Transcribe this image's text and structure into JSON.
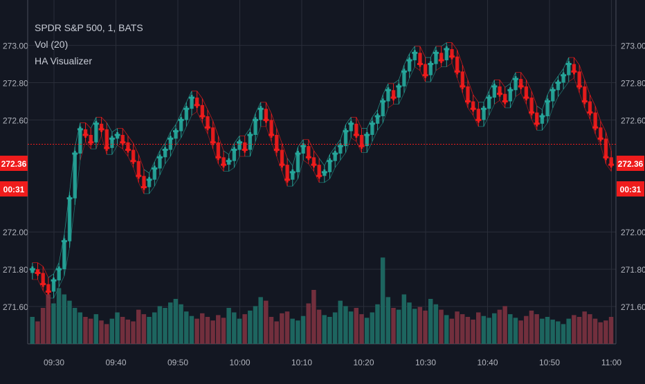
{
  "legend": {
    "symbol": "SPDR S&P 500, 1, BATS",
    "volume": "Vol (20)",
    "indicator": "HA Visualizer"
  },
  "price_labels": {
    "last_price": "272.36",
    "countdown": "00:31"
  },
  "colors": {
    "background": "#131722",
    "up": "#26a69a",
    "down": "#ef1c1c",
    "up_volume": "#1f6e66",
    "down_volume": "#7d3240",
    "grid": "#2a2e39",
    "text": "#b2b5be",
    "price_line": "#ef1c1c"
  },
  "chart_data": {
    "type": "candlestick",
    "y_axis_ticks": [
      "273.00",
      "272.80",
      "272.60",
      "272.00",
      "271.80",
      "271.60"
    ],
    "x_axis_ticks": [
      "09:30",
      "09:40",
      "09:50",
      "10:00",
      "10:10",
      "10:20",
      "10:30",
      "10:40",
      "10:50",
      "11:00"
    ],
    "ylim": [
      271.5,
      273.08
    ],
    "price_line": 272.47,
    "close": [
      271.8,
      271.78,
      271.72,
      271.68,
      271.74,
      271.8,
      271.95,
      272.18,
      272.42,
      272.55,
      272.52,
      272.48,
      272.58,
      272.55,
      272.45,
      272.5,
      272.52,
      272.48,
      272.44,
      272.38,
      272.3,
      272.24,
      272.28,
      272.34,
      272.4,
      272.44,
      272.5,
      272.54,
      272.6,
      272.66,
      272.72,
      272.68,
      272.62,
      272.56,
      272.48,
      272.4,
      272.36,
      272.38,
      272.44,
      272.48,
      272.44,
      272.52,
      272.6,
      272.66,
      272.6,
      272.52,
      272.44,
      272.36,
      272.28,
      272.32,
      272.42,
      272.46,
      272.4,
      272.36,
      272.3,
      272.32,
      272.38,
      272.42,
      272.46,
      272.54,
      272.58,
      272.52,
      272.46,
      272.52,
      272.58,
      272.62,
      272.7,
      272.76,
      272.72,
      272.78,
      272.86,
      272.92,
      272.96,
      272.9,
      272.84,
      272.9,
      272.96,
      272.92,
      272.98,
      272.94,
      272.86,
      272.78,
      272.7,
      272.66,
      272.6,
      272.66,
      272.72,
      272.78,
      272.74,
      272.7,
      272.76,
      272.82,
      272.78,
      272.72,
      272.64,
      272.58,
      272.62,
      272.7,
      272.76,
      272.8,
      272.84,
      272.9,
      272.86,
      272.78,
      272.7,
      272.64,
      272.56,
      272.5,
      272.4,
      272.36
    ],
    "volume": [
      0.3,
      0.25,
      0.4,
      0.55,
      0.45,
      0.62,
      0.55,
      0.48,
      0.4,
      0.35,
      0.3,
      0.28,
      0.33,
      0.26,
      0.22,
      0.28,
      0.35,
      0.3,
      0.27,
      0.25,
      0.38,
      0.33,
      0.3,
      0.35,
      0.42,
      0.4,
      0.46,
      0.5,
      0.44,
      0.36,
      0.31,
      0.28,
      0.34,
      0.3,
      0.26,
      0.32,
      0.29,
      0.4,
      0.35,
      0.28,
      0.33,
      0.37,
      0.42,
      0.52,
      0.48,
      0.3,
      0.25,
      0.34,
      0.36,
      0.28,
      0.26,
      0.31,
      0.45,
      0.6,
      0.38,
      0.32,
      0.3,
      0.35,
      0.48,
      0.42,
      0.36,
      0.4,
      0.33,
      0.29,
      0.35,
      0.44,
      0.96,
      0.52,
      0.4,
      0.38,
      0.55,
      0.46,
      0.39,
      0.41,
      0.37,
      0.5,
      0.44,
      0.38,
      0.32,
      0.28,
      0.36,
      0.33,
      0.3,
      0.27,
      0.35,
      0.31,
      0.29,
      0.34,
      0.38,
      0.42,
      0.33,
      0.29,
      0.26,
      0.31,
      0.37,
      0.33,
      0.28,
      0.3,
      0.27,
      0.25,
      0.22,
      0.28,
      0.32,
      0.3,
      0.36,
      0.33,
      0.28,
      0.24,
      0.26,
      0.3
    ]
  }
}
